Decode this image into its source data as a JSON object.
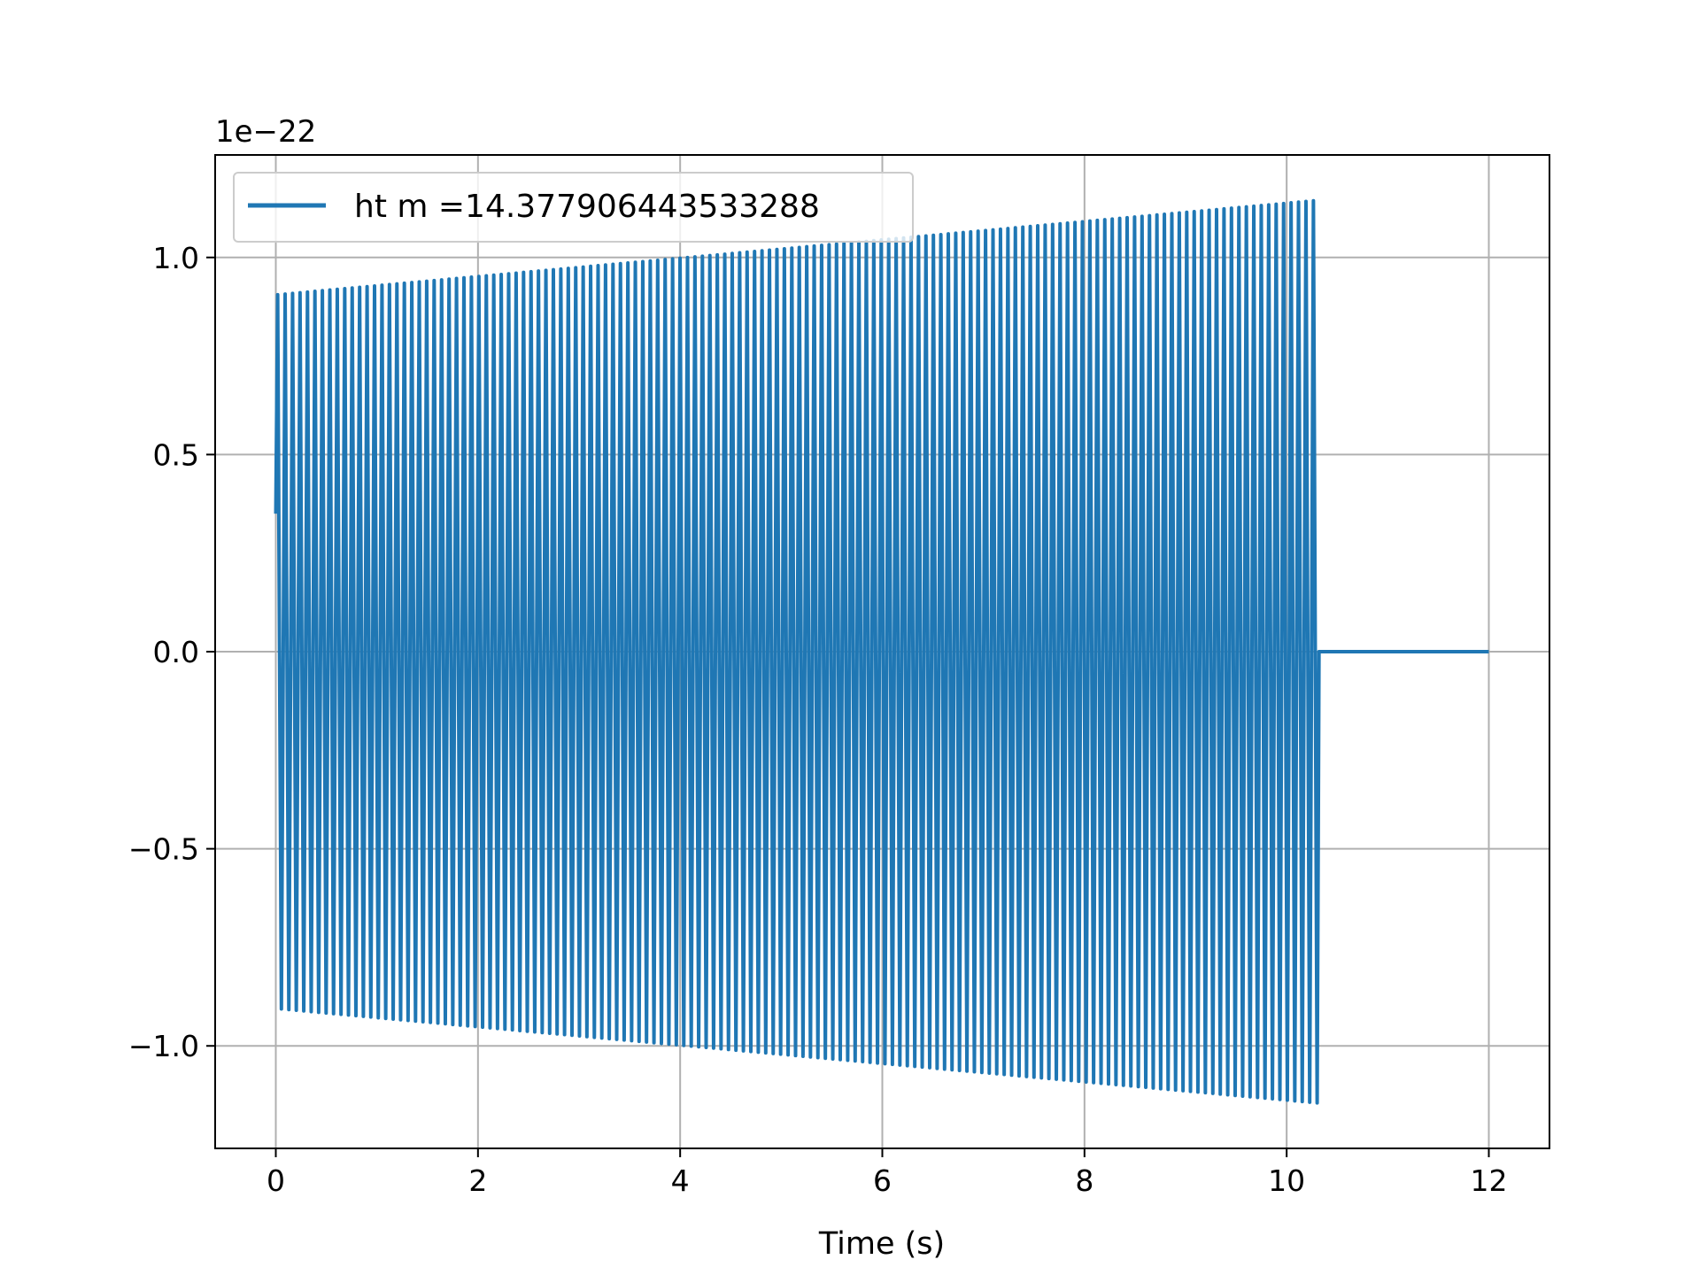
{
  "chart_data": {
    "type": "line",
    "title": "",
    "xlabel": "Time (s)",
    "ylabel": "",
    "y_offset_label": "1e−22",
    "xlim": [
      -0.6,
      12.6
    ],
    "ylim": [
      -1.26,
      1.26
    ],
    "grid": true,
    "legend_position": "upper-left",
    "x_ticks": [
      {
        "value": 0,
        "label": "0"
      },
      {
        "value": 2,
        "label": "2"
      },
      {
        "value": 4,
        "label": "4"
      },
      {
        "value": 6,
        "label": "6"
      },
      {
        "value": 8,
        "label": "8"
      },
      {
        "value": 10,
        "label": "10"
      },
      {
        "value": 12,
        "label": "12"
      }
    ],
    "y_ticks": [
      {
        "value": -1.0,
        "label": "−1.0"
      },
      {
        "value": -0.5,
        "label": "−0.5"
      },
      {
        "value": 0.0,
        "label": "0.0"
      },
      {
        "value": 0.5,
        "label": "0.5"
      },
      {
        "value": 1.0,
        "label": "1.0"
      }
    ],
    "series": [
      {
        "name": "ht m =14.377906443533288",
        "color": "#1f77b4",
        "signal": {
          "kind": "chirp",
          "start_time": 0.0,
          "end_time": 10.32,
          "zero_until": 12.0,
          "cycles": 140,
          "amplitude_start": 0.905,
          "amplitude_end": 1.145,
          "initial_value": 0.35
        }
      }
    ]
  }
}
